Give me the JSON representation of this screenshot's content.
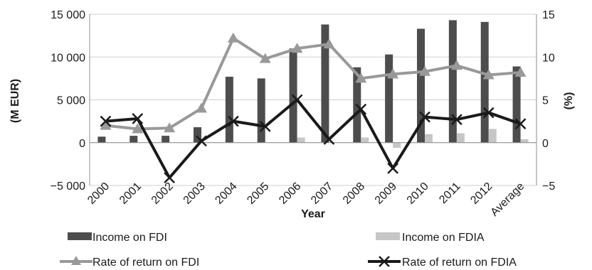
{
  "chart_data": {
    "type": "bar",
    "categories": [
      "2000",
      "2001",
      "2002",
      "2003",
      "2004",
      "2005",
      "2006",
      "2007",
      "2008",
      "2009",
      "2010",
      "2011",
      "2012",
      "Average"
    ],
    "xlabel": "Year",
    "ylabel": "(M EUR)",
    "y2label": "(%)",
    "ylim": [
      -5000,
      15000
    ],
    "y2lim": [
      -5,
      15
    ],
    "yticks": [
      "15 000",
      "10 000",
      "5 000",
      "0",
      "−5 000"
    ],
    "y2ticks": [
      "15",
      "10",
      "5",
      "0",
      "−5"
    ],
    "grid": true,
    "legend_position": "bottom",
    "series": [
      {
        "name": "Income on FDI",
        "kind": "bar",
        "axis": "left",
        "color": "#4d4d4d",
        "values": [
          700,
          800,
          800,
          1800,
          7700,
          7500,
          11000,
          13800,
          8800,
          10300,
          13300,
          14300,
          14100,
          8900
        ]
      },
      {
        "name": "Income on FDIA",
        "kind": "bar",
        "axis": "left",
        "color": "#c6c6c6",
        "values": [
          0,
          0,
          0,
          0,
          0,
          0,
          600,
          0,
          600,
          -600,
          1000,
          1100,
          1600,
          400
        ]
      },
      {
        "name": "Rate of return on FDI",
        "kind": "line",
        "marker": "triangle",
        "axis": "right",
        "color": "#999999",
        "values": [
          2.0,
          1.6,
          1.7,
          4.0,
          12.2,
          9.8,
          11.0,
          11.5,
          7.5,
          8.0,
          8.3,
          9.0,
          7.9,
          8.2
        ]
      },
      {
        "name": "Rate of return on FDIA",
        "kind": "line",
        "marker": "x",
        "axis": "right",
        "color": "#1a1a1a",
        "values": [
          2.5,
          2.8,
          -4.1,
          0.2,
          2.5,
          1.9,
          5.0,
          0.4,
          3.9,
          -3.0,
          3.0,
          2.7,
          3.5,
          2.2
        ]
      }
    ]
  }
}
